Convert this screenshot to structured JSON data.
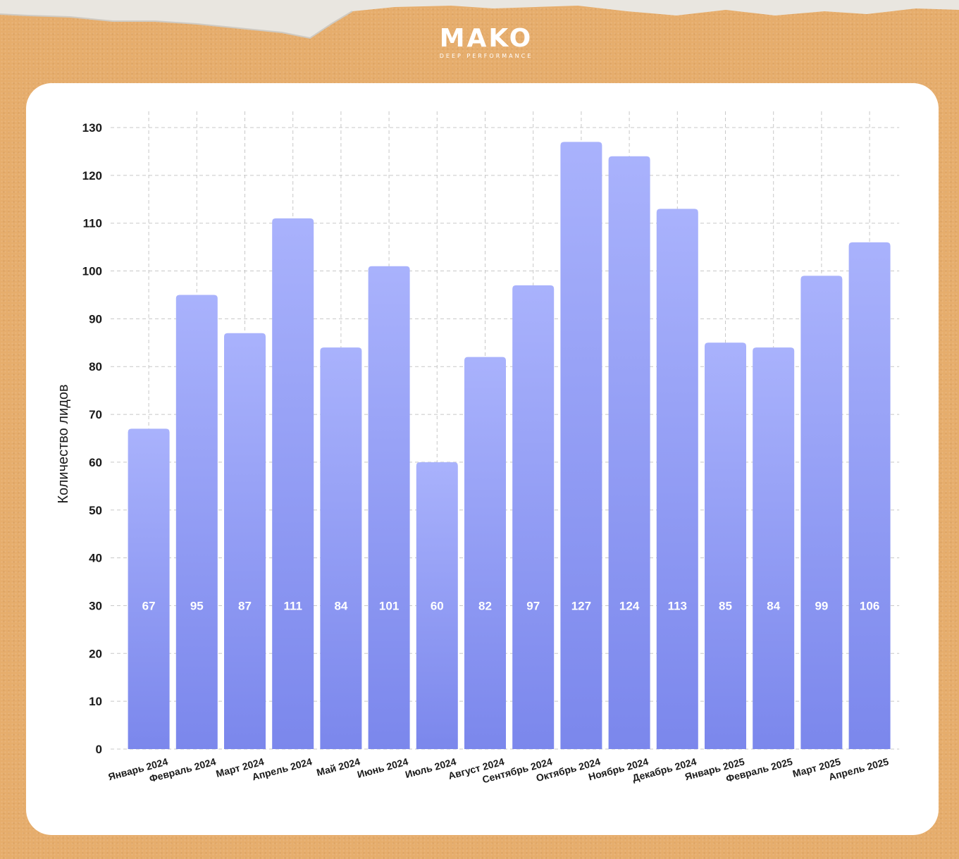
{
  "brand": {
    "name": "MAKO",
    "tagline": "DEEP PERFORMANCE"
  },
  "colors": {
    "background": "#e6ad6c",
    "card": "#ffffff",
    "bar_base": "#7b87ec",
    "bar_top": "#a9b2fc",
    "grid": "#c8c8c8"
  },
  "chart_data": {
    "type": "bar",
    "title": "",
    "xlabel": "",
    "ylabel": "Количество лидов",
    "ylim": [
      0,
      130
    ],
    "yticks": [
      0,
      10,
      20,
      30,
      40,
      50,
      60,
      70,
      80,
      90,
      100,
      110,
      120,
      130
    ],
    "grid": true,
    "categories": [
      "Январь 2024",
      "Февраль 2024",
      "Март 2024",
      "Апрель 2024",
      "Май 2024",
      "Июнь 2024",
      "Июль 2024",
      "Август 2024",
      "Сентябрь 2024",
      "Октябрь 2024",
      "Ноябрь 2024",
      "Декабрь 2024",
      "Январь 2025",
      "Февраль 2025",
      "Март 2025",
      "Апрель 2025"
    ],
    "values": [
      67,
      95,
      87,
      111,
      84,
      101,
      60,
      82,
      97,
      127,
      124,
      113,
      85,
      84,
      99,
      106
    ]
  }
}
